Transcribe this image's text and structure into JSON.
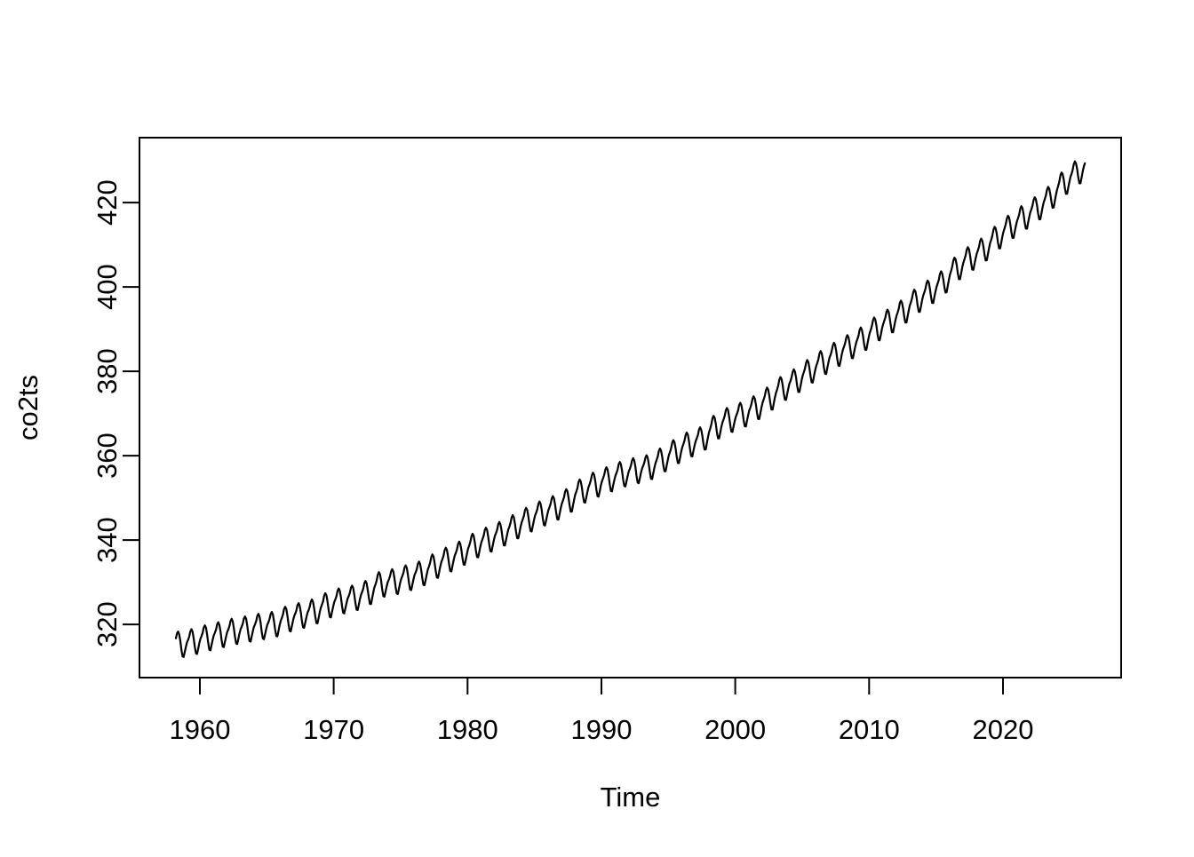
{
  "figure": {
    "background": "#ffffff",
    "line_color": "#000000",
    "axis_color": "#000000"
  },
  "chart_data": {
    "type": "line",
    "title": "",
    "xlabel": "Time",
    "ylabel": "co2ts",
    "series_name": "co2ts",
    "grid": false,
    "legend": false,
    "x_ticks": [
      1960,
      1970,
      1980,
      1990,
      2000,
      2010,
      2020
    ],
    "y_ticks": [
      320,
      340,
      360,
      380,
      400,
      420
    ],
    "x_range": [
      1955.49,
      2028.83
    ],
    "y_range": [
      307.4,
      435.4
    ],
    "data_start": "1958-03",
    "data_end": "2026-02",
    "sampling": "monthly",
    "years": [
      1958,
      1959,
      1960,
      1961,
      1962,
      1963,
      1964,
      1965,
      1966,
      1967,
      1968,
      1969,
      1970,
      1971,
      1972,
      1973,
      1974,
      1975,
      1976,
      1977,
      1978,
      1979,
      1980,
      1981,
      1982,
      1983,
      1984,
      1985,
      1986,
      1987,
      1988,
      1989,
      1990,
      1991,
      1992,
      1993,
      1994,
      1995,
      1996,
      1997,
      1998,
      1999,
      2000,
      2001,
      2002,
      2003,
      2004,
      2005,
      2006,
      2007,
      2008,
      2009,
      2010,
      2011,
      2012,
      2013,
      2014,
      2015,
      2016,
      2017,
      2018,
      2019,
      2020,
      2021,
      2022,
      2023,
      2024,
      2025,
      2026
    ],
    "annual_means": [
      315.34,
      315.97,
      316.91,
      317.64,
      318.45,
      318.99,
      319.62,
      320.04,
      321.37,
      322.18,
      323.05,
      324.62,
      325.68,
      326.32,
      327.46,
      329.68,
      330.19,
      331.12,
      332.03,
      333.84,
      335.41,
      336.84,
      338.76,
      340.12,
      341.48,
      343.15,
      344.87,
      346.35,
      347.61,
      349.31,
      351.69,
      353.2,
      354.45,
      355.7,
      356.54,
      357.21,
      358.96,
      360.97,
      362.74,
      363.88,
      366.84,
      368.54,
      369.71,
      371.32,
      373.45,
      375.98,
      377.7,
      379.98,
      382.09,
      384.02,
      385.83,
      387.64,
      390.1,
      391.85,
      394.06,
      396.74,
      398.81,
      401.01,
      404.41,
      406.76,
      408.72,
      411.66,
      414.24,
      416.45,
      418.56,
      421.08,
      424.61,
      427.1,
      429.6
    ],
    "seasonal_offsets_by_month": [
      0.1,
      0.66,
      1.37,
      2.53,
      2.98,
      2.32,
      0.7,
      -1.41,
      -3.05,
      -3.25,
      -2.07,
      -0.88
    ]
  }
}
